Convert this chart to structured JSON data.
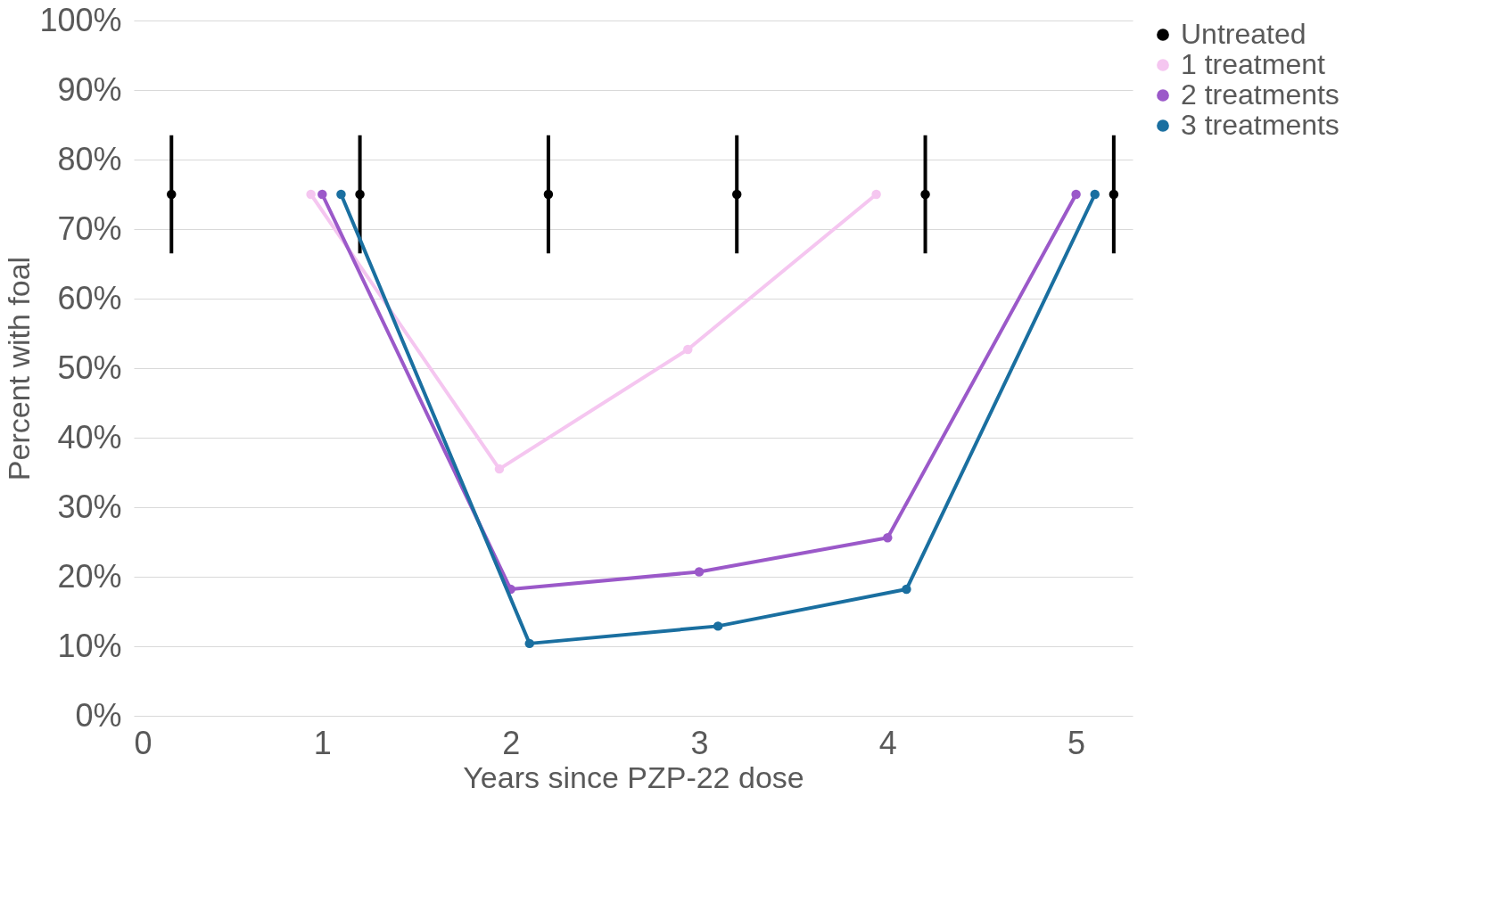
{
  "chart_data": {
    "type": "line",
    "xlabel": "Years since PZP-22 dose",
    "ylabel": "Percent with foal",
    "xlim": [
      0,
      5.3
    ],
    "xticks": [
      0,
      1,
      2,
      3,
      4,
      5
    ],
    "ylim": [
      0,
      100
    ],
    "yticks": [
      {
        "value": 0,
        "label": "0%"
      },
      {
        "value": 10,
        "label": "10%"
      },
      {
        "value": 20,
        "label": "20%"
      },
      {
        "value": 30,
        "label": "30%"
      },
      {
        "value": 40,
        "label": "40%"
      },
      {
        "value": 50,
        "label": "50%"
      },
      {
        "value": 60,
        "label": "60%"
      },
      {
        "value": 70,
        "label": "70%"
      },
      {
        "value": 80,
        "label": "80%"
      },
      {
        "value": 90,
        "label": "90%"
      },
      {
        "value": 100,
        "label": "100%"
      }
    ],
    "grid": "y",
    "legend": "right",
    "marker": "circle",
    "line_style": "solid",
    "series": [
      {
        "name": "Untreated",
        "type": "scatter",
        "color": "#000000",
        "x": [
          0.2,
          1.2,
          2.2,
          3.2,
          4.2,
          5.2
        ],
        "values": [
          75,
          75,
          75,
          75,
          75,
          75
        ],
        "errors": [
          8.5,
          8.5,
          8.5,
          8.5,
          8.5,
          8.5
        ]
      },
      {
        "name": "1 treatment",
        "color": "#f5c6f0",
        "x": [
          0.94,
          1.94,
          2.94,
          3.94
        ],
        "values": [
          75,
          35.5,
          52.7,
          75
        ]
      },
      {
        "name": "2 treatments",
        "color": "#9b59c9",
        "x": [
          1.0,
          2.0,
          3.0,
          4.0,
          5.0
        ],
        "values": [
          75,
          18.2,
          20.7,
          25.6,
          75
        ]
      },
      {
        "name": "3 treatments",
        "color": "#1a6fa0",
        "x": [
          1.1,
          2.1,
          3.1,
          4.1,
          5.1
        ],
        "values": [
          75,
          10.4,
          12.9,
          18.2,
          75
        ]
      }
    ]
  }
}
